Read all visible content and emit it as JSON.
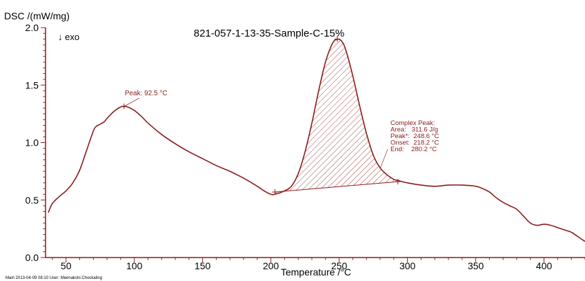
{
  "chart_data": {
    "type": "line",
    "title": "821-057-1-13-35-Sample-C-15%",
    "xlabel": "Temperature /°C",
    "ylabel": "DSC /(mW/mg)",
    "direction_label": "↓ exo",
    "xlim": [
      35,
      430
    ],
    "ylim": [
      0,
      2.0
    ],
    "x_ticks": [
      50,
      100,
      150,
      200,
      250,
      300,
      350,
      400
    ],
    "y_ticks": [
      0.0,
      0.5,
      1.0,
      1.5,
      2.0
    ],
    "y_tick_labels": [
      "0.0",
      "0.5",
      "1.0",
      "1.5",
      "2.0"
    ],
    "grid": false,
    "colors": {
      "curve": "#8b1a1a",
      "axis": "#8b1a1a",
      "hatch": "#8b1a1a"
    },
    "series": [
      {
        "x": [
          37,
          40,
          45,
          50,
          55,
          60,
          65,
          70,
          72,
          75,
          78,
          80,
          85,
          90,
          92.5,
          95,
          100,
          105,
          110,
          120,
          130,
          140,
          150,
          160,
          170,
          180,
          190,
          195,
          200,
          203,
          210,
          215,
          220,
          225,
          230,
          235,
          240,
          245,
          248.6,
          252,
          255,
          260,
          265,
          270,
          275,
          280,
          285,
          290,
          293,
          300,
          310,
          320,
          330,
          340,
          350,
          355,
          360,
          365,
          370,
          375,
          380,
          385,
          390,
          395,
          400,
          405,
          410,
          415,
          420,
          425,
          430
        ],
        "y": [
          0.39,
          0.47,
          0.53,
          0.58,
          0.65,
          0.76,
          0.93,
          1.1,
          1.14,
          1.16,
          1.18,
          1.21,
          1.27,
          1.31,
          1.315,
          1.31,
          1.28,
          1.23,
          1.17,
          1.07,
          0.99,
          0.92,
          0.86,
          0.8,
          0.75,
          0.69,
          0.62,
          0.58,
          0.55,
          0.55,
          0.58,
          0.62,
          0.73,
          0.92,
          1.17,
          1.45,
          1.7,
          1.86,
          1.9,
          1.88,
          1.8,
          1.58,
          1.32,
          1.08,
          0.89,
          0.78,
          0.72,
          0.68,
          0.67,
          0.65,
          0.63,
          0.62,
          0.63,
          0.63,
          0.62,
          0.6,
          0.57,
          0.52,
          0.48,
          0.45,
          0.42,
          0.36,
          0.3,
          0.28,
          0.29,
          0.28,
          0.26,
          0.24,
          0.22,
          0.18,
          0.14
        ]
      }
    ],
    "peak_annotation": {
      "label": "Peak: 92.5 °C",
      "x": 92.5,
      "y": 1.315
    },
    "complex_peak": {
      "label_lines": [
        "Complex Peak:",
        "Area:   311.6 J/g",
        "Peak*:  248.6 °C",
        "Onset:  218.2 °C",
        "End:    280.2 °C"
      ],
      "area": 311.6,
      "peak": 248.6,
      "onset": 218.2,
      "end": 280.2,
      "baseline_start": [
        203,
        0.57
      ],
      "baseline_end": [
        293,
        0.66
      ]
    }
  },
  "footer": "Main   2013-04-09 08:10   User: Meenakshi.Chockaling"
}
